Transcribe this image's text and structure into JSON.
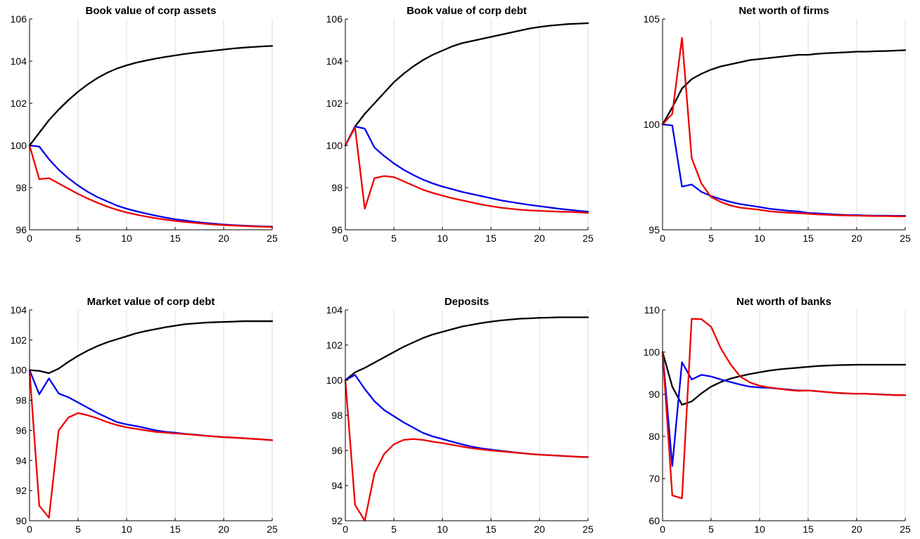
{
  "colors": {
    "black": "#000000",
    "blue": "#0000ee",
    "red": "#ee0000",
    "grid": "#dcdcdc"
  },
  "chart_data": [
    {
      "type": "line",
      "title": "Book value of corp assets",
      "xlabel": "",
      "ylabel": "",
      "xlim": [
        0,
        25
      ],
      "ylim": [
        96,
        106
      ],
      "xticks": [
        0,
        5,
        10,
        15,
        20,
        25
      ],
      "yticks": [
        96,
        98,
        100,
        102,
        104,
        106
      ],
      "grid": "vertical",
      "x": [
        0,
        1,
        2,
        3,
        4,
        5,
        6,
        7,
        8,
        9,
        10,
        11,
        12,
        13,
        14,
        15,
        16,
        17,
        18,
        19,
        20,
        21,
        22,
        23,
        24,
        25
      ],
      "series": [
        {
          "color": "black",
          "values": [
            100,
            100.6,
            101.2,
            101.7,
            102.15,
            102.55,
            102.9,
            103.2,
            103.45,
            103.65,
            103.8,
            103.93,
            104.03,
            104.12,
            104.2,
            104.27,
            104.34,
            104.4,
            104.45,
            104.5,
            104.55,
            104.6,
            104.64,
            104.67,
            104.7,
            104.72
          ]
        },
        {
          "color": "blue",
          "values": [
            100,
            99.95,
            99.35,
            98.85,
            98.45,
            98.1,
            97.8,
            97.55,
            97.35,
            97.15,
            97.0,
            96.88,
            96.77,
            96.67,
            96.58,
            96.5,
            96.44,
            96.38,
            96.33,
            96.29,
            96.25,
            96.22,
            96.2,
            96.18,
            96.16,
            96.15
          ]
        },
        {
          "color": "red",
          "values": [
            100,
            98.4,
            98.45,
            98.2,
            97.95,
            97.7,
            97.48,
            97.28,
            97.1,
            96.95,
            96.82,
            96.72,
            96.63,
            96.55,
            96.48,
            96.42,
            96.37,
            96.33,
            96.29,
            96.25,
            96.22,
            96.2,
            96.18,
            96.16,
            96.15,
            96.13
          ]
        }
      ]
    },
    {
      "type": "line",
      "title": "Book value of corp debt",
      "xlabel": "",
      "ylabel": "",
      "xlim": [
        0,
        25
      ],
      "ylim": [
        96,
        106
      ],
      "xticks": [
        0,
        5,
        10,
        15,
        20,
        25
      ],
      "yticks": [
        96,
        98,
        100,
        102,
        104,
        106
      ],
      "grid": "vertical",
      "x": [
        0,
        1,
        2,
        3,
        4,
        5,
        6,
        7,
        8,
        9,
        10,
        11,
        12,
        13,
        14,
        15,
        16,
        17,
        18,
        19,
        20,
        21,
        22,
        23,
        24,
        25
      ],
      "series": [
        {
          "color": "black",
          "values": [
            100,
            100.9,
            101.5,
            102.0,
            102.5,
            103.0,
            103.4,
            103.75,
            104.05,
            104.3,
            104.5,
            104.7,
            104.85,
            104.95,
            105.05,
            105.15,
            105.25,
            105.35,
            105.45,
            105.55,
            105.62,
            105.68,
            105.72,
            105.76,
            105.78,
            105.8
          ]
        },
        {
          "color": "blue",
          "values": [
            100,
            100.9,
            100.8,
            99.9,
            99.5,
            99.15,
            98.85,
            98.6,
            98.38,
            98.2,
            98.05,
            97.93,
            97.8,
            97.7,
            97.6,
            97.5,
            97.4,
            97.32,
            97.25,
            97.18,
            97.12,
            97.06,
            97.0,
            96.95,
            96.9,
            96.86
          ]
        },
        {
          "color": "red",
          "values": [
            100,
            100.85,
            97.0,
            98.45,
            98.55,
            98.5,
            98.3,
            98.1,
            97.9,
            97.75,
            97.62,
            97.5,
            97.4,
            97.3,
            97.2,
            97.12,
            97.05,
            97.0,
            96.95,
            96.92,
            96.9,
            96.88,
            96.86,
            96.85,
            96.83,
            96.8
          ]
        }
      ]
    },
    {
      "type": "line",
      "title": "Net worth of firms",
      "xlabel": "",
      "ylabel": "",
      "xlim": [
        0,
        25
      ],
      "ylim": [
        95,
        105
      ],
      "xticks": [
        0,
        5,
        10,
        15,
        20,
        25
      ],
      "yticks": [
        95,
        100,
        105
      ],
      "grid": "vertical",
      "x": [
        0,
        1,
        2,
        3,
        4,
        5,
        6,
        7,
        8,
        9,
        10,
        11,
        12,
        13,
        14,
        15,
        16,
        17,
        18,
        19,
        20,
        21,
        22,
        23,
        24,
        25
      ],
      "series": [
        {
          "color": "black",
          "values": [
            100,
            100.8,
            101.7,
            102.15,
            102.4,
            102.6,
            102.75,
            102.85,
            102.95,
            103.05,
            103.1,
            103.15,
            103.2,
            103.25,
            103.3,
            103.3,
            103.35,
            103.38,
            103.4,
            103.42,
            103.45,
            103.45,
            103.47,
            103.48,
            103.5,
            103.52
          ]
        },
        {
          "color": "blue",
          "values": [
            100,
            99.95,
            97.05,
            97.15,
            96.8,
            96.6,
            96.45,
            96.32,
            96.22,
            96.15,
            96.08,
            96.0,
            95.95,
            95.9,
            95.87,
            95.8,
            95.78,
            95.75,
            95.72,
            95.7,
            95.7,
            95.68,
            95.67,
            95.67,
            95.66,
            95.66
          ]
        },
        {
          "color": "red",
          "values": [
            100,
            100.5,
            104.1,
            98.4,
            97.2,
            96.55,
            96.32,
            96.15,
            96.05,
            96.0,
            95.95,
            95.88,
            95.84,
            95.81,
            95.79,
            95.76,
            95.73,
            95.71,
            95.69,
            95.68,
            95.67,
            95.66,
            95.65,
            95.65,
            95.64,
            95.64
          ]
        }
      ]
    },
    {
      "type": "line",
      "title": "Market value of corp debt",
      "xlabel": "",
      "ylabel": "",
      "xlim": [
        0,
        25
      ],
      "ylim": [
        90,
        104
      ],
      "xticks": [
        0,
        5,
        10,
        15,
        20,
        25
      ],
      "yticks": [
        90,
        92,
        94,
        96,
        98,
        100,
        102,
        104
      ],
      "grid": "vertical",
      "x": [
        0,
        1,
        2,
        3,
        4,
        5,
        6,
        7,
        8,
        9,
        10,
        11,
        12,
        13,
        14,
        15,
        16,
        17,
        18,
        19,
        20,
        21,
        22,
        23,
        24,
        25
      ],
      "series": [
        {
          "color": "black",
          "values": [
            100,
            99.95,
            99.8,
            100.1,
            100.55,
            100.95,
            101.3,
            101.6,
            101.85,
            102.05,
            102.25,
            102.45,
            102.6,
            102.72,
            102.85,
            102.95,
            103.05,
            103.1,
            103.15,
            103.18,
            103.2,
            103.22,
            103.25,
            103.25,
            103.25,
            103.25
          ]
        },
        {
          "color": "blue",
          "values": [
            100,
            98.4,
            99.45,
            98.45,
            98.2,
            97.85,
            97.5,
            97.15,
            96.85,
            96.55,
            96.4,
            96.28,
            96.15,
            96.0,
            95.9,
            95.85,
            95.77,
            95.72,
            95.66,
            95.6,
            95.55,
            95.52,
            95.48,
            95.44,
            95.4,
            95.35
          ]
        },
        {
          "color": "red",
          "values": [
            100,
            91.0,
            90.2,
            96.0,
            96.85,
            97.15,
            97.0,
            96.8,
            96.55,
            96.35,
            96.2,
            96.1,
            96.0,
            95.9,
            95.85,
            95.8,
            95.75,
            95.7,
            95.65,
            95.6,
            95.55,
            95.52,
            95.48,
            95.44,
            95.4,
            95.35
          ]
        }
      ]
    },
    {
      "type": "line",
      "title": "Deposits",
      "xlabel": "",
      "ylabel": "",
      "xlim": [
        0,
        25
      ],
      "ylim": [
        92,
        104
      ],
      "xticks": [
        0,
        5,
        10,
        15,
        20,
        25
      ],
      "yticks": [
        92,
        94,
        96,
        98,
        100,
        102,
        104
      ],
      "grid": "vertical",
      "x": [
        0,
        1,
        2,
        3,
        4,
        5,
        6,
        7,
        8,
        9,
        10,
        11,
        12,
        13,
        14,
        15,
        16,
        17,
        18,
        19,
        20,
        21,
        22,
        23,
        24,
        25
      ],
      "series": [
        {
          "color": "black",
          "values": [
            100,
            100.45,
            100.7,
            101.0,
            101.3,
            101.6,
            101.9,
            102.15,
            102.4,
            102.6,
            102.75,
            102.9,
            103.05,
            103.15,
            103.25,
            103.33,
            103.4,
            103.45,
            103.5,
            103.52,
            103.55,
            103.56,
            103.58,
            103.58,
            103.58,
            103.58
          ]
        },
        {
          "color": "blue",
          "values": [
            100,
            100.3,
            99.5,
            98.8,
            98.3,
            97.95,
            97.6,
            97.3,
            97.0,
            96.8,
            96.65,
            96.5,
            96.35,
            96.22,
            96.12,
            96.05,
            95.98,
            95.92,
            95.86,
            95.8,
            95.76,
            95.73,
            95.7,
            95.67,
            95.64,
            95.62
          ]
        },
        {
          "color": "red",
          "values": [
            100,
            92.9,
            92.0,
            94.7,
            95.8,
            96.35,
            96.6,
            96.65,
            96.6,
            96.5,
            96.42,
            96.32,
            96.22,
            96.13,
            96.06,
            96.0,
            95.95,
            95.9,
            95.85,
            95.8,
            95.76,
            95.73,
            95.7,
            95.67,
            95.64,
            95.62
          ]
        }
      ]
    },
    {
      "type": "line",
      "title": "Net worth of banks",
      "xlabel": "",
      "ylabel": "",
      "xlim": [
        0,
        25
      ],
      "ylim": [
        60,
        110
      ],
      "xticks": [
        0,
        5,
        10,
        15,
        20,
        25
      ],
      "yticks": [
        60,
        70,
        80,
        90,
        100,
        110
      ],
      "grid": "vertical",
      "x": [
        0,
        1,
        2,
        3,
        4,
        5,
        6,
        7,
        8,
        9,
        10,
        11,
        12,
        13,
        14,
        15,
        16,
        17,
        18,
        19,
        20,
        21,
        22,
        23,
        24,
        25
      ],
      "series": [
        {
          "color": "black",
          "values": [
            100,
            91.8,
            87.5,
            88.3,
            90.2,
            91.8,
            92.9,
            93.7,
            94.3,
            94.8,
            95.2,
            95.6,
            95.9,
            96.1,
            96.3,
            96.5,
            96.7,
            96.8,
            96.9,
            96.95,
            97.0,
            97.0,
            97.0,
            97.0,
            97.0,
            97.0
          ]
        },
        {
          "color": "blue",
          "values": [
            100,
            73.0,
            97.6,
            93.5,
            94.6,
            94.2,
            93.5,
            92.9,
            92.3,
            91.8,
            91.6,
            91.5,
            91.3,
            91.1,
            90.9,
            90.9,
            90.7,
            90.5,
            90.3,
            90.2,
            90.1,
            90.1,
            90.0,
            89.9,
            89.8,
            89.8
          ]
        },
        {
          "color": "red",
          "values": [
            100,
            66.0,
            65.3,
            107.9,
            107.8,
            106.0,
            100.9,
            97.1,
            94.2,
            92.8,
            92.0,
            91.6,
            91.3,
            91.0,
            90.8,
            90.9,
            90.7,
            90.5,
            90.3,
            90.2,
            90.1,
            90.1,
            90.0,
            89.9,
            89.8,
            89.8
          ]
        }
      ]
    }
  ]
}
